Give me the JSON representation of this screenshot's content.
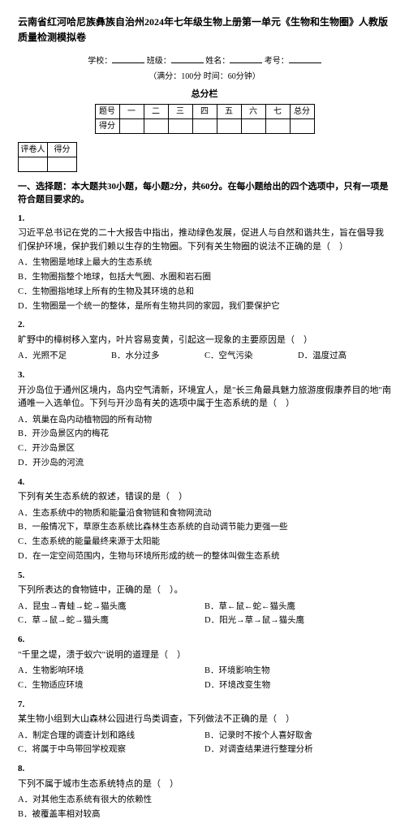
{
  "title": "云南省红河哈尼族彝族自治州2024年七年级生物上册第一单元《生物和生物圈》人教版质量检测模拟卷",
  "info": {
    "school_label": "学校：",
    "class_label": "班级：",
    "name_label": "姓名：",
    "exam_no_label": "考号：",
    "full_mark_text": "（满分：100分 时间：60分钟）"
  },
  "score_table": {
    "caption": "总分栏",
    "row1": [
      "题号",
      "一",
      "二",
      "三",
      "四",
      "五",
      "六",
      "七",
      "总分"
    ],
    "row2_label": "得分"
  },
  "grader_table": {
    "h1": "评卷人",
    "h2": "得分"
  },
  "section1_head": "一、选择题：本大题共30小题，每小题2分，共60分。在每小题给出的四个选项中，只有一项是符合题目要求的。",
  "questions": [
    {
      "num": "1.",
      "text": "习近平总书记在党的二十大报告中指出，推动绿色发展，促进人与自然和谐共生，旨在倡导我们保护环境，保护我们赖以生存的生物圈。下列有关生物圈的说法不正确的是（　）",
      "layout": "col1",
      "opts": [
        "A．生物圈是地球上最大的生态系统",
        "B．生物圈指整个地球，包括大气圈、水圈和岩石圈",
        "C．生物圈指地球上所有的生物及其环境的总和",
        "D．生物圈是一个统一的整体，是所有生物共同的家园，我们要保护它"
      ]
    },
    {
      "num": "2.",
      "text": "旷野中的樟树移入室内，叶片容易变黄，引起这一现象的主要原因是（　）",
      "layout": "col4",
      "opts": [
        "A．光照不足",
        "B．水分过多",
        "C．空气污染",
        "D．温度过高"
      ]
    },
    {
      "num": "3.",
      "text": "开沙岛位于通州区境内，岛内空气清新，环境宜人，是\"长三角最具魅力旅游度假康养目的地\"南通唯一入选单位。下列与开沙岛有关的选项中属于生态系统的是（　）",
      "layout": "col1",
      "opts": [
        "A．筑巢在岛内动植物园的所有动物",
        "B．开沙岛景区内的梅花",
        "C．开沙岛景区",
        "D．开沙岛的河流"
      ]
    },
    {
      "num": "4.",
      "text": "下列有关生态系统的叙述，错误的是（　）",
      "layout": "col1",
      "opts": [
        "A．生态系统中的物质和能量沿食物链和食物网流动",
        "B．一般情况下，草原生态系统比森林生态系统的自动调节能力更强一些",
        "C．生态系统的能量最终来源于太阳能",
        "D．在一定空间范围内，生物与环境所形成的统一的整体叫做生态系统"
      ]
    },
    {
      "num": "5.",
      "text": "下列所表达的食物链中，正确的是（　）。",
      "layout": "col2",
      "opts": [
        "A．昆虫→青蛙→蛇→猫头鹰",
        "B．草←鼠←蛇←猫头鹰",
        "C．草→鼠→蛇→猫头鹰",
        "D．阳光→草→鼠→猫头鹰"
      ]
    },
    {
      "num": "6.",
      "text": "\"千里之堤，溃于蚁穴\"说明的道理是（　）",
      "layout": "col2",
      "opts": [
        "A．生物影响环境",
        "B．环境影响生物",
        "C．生物适应环境",
        "D．环境改变生物"
      ]
    },
    {
      "num": "7.",
      "text": "某生物小组到大山森林公园进行鸟类调查，下列做法不正确的是（　）",
      "layout": "col2",
      "opts": [
        "A．制定合理的调查计划和路线",
        "B．记录时不按个人喜好取舍",
        "C．将属于中鸟带回学校观察",
        "D．对调查结果进行整理分析"
      ]
    },
    {
      "num": "8.",
      "text": "下列不属于城市生态系统特点的是（　）",
      "layout": "col1",
      "opts": [
        "A．对其他生态系统有很大的依赖性",
        "B．被覆盖率相对较高"
      ]
    }
  ]
}
